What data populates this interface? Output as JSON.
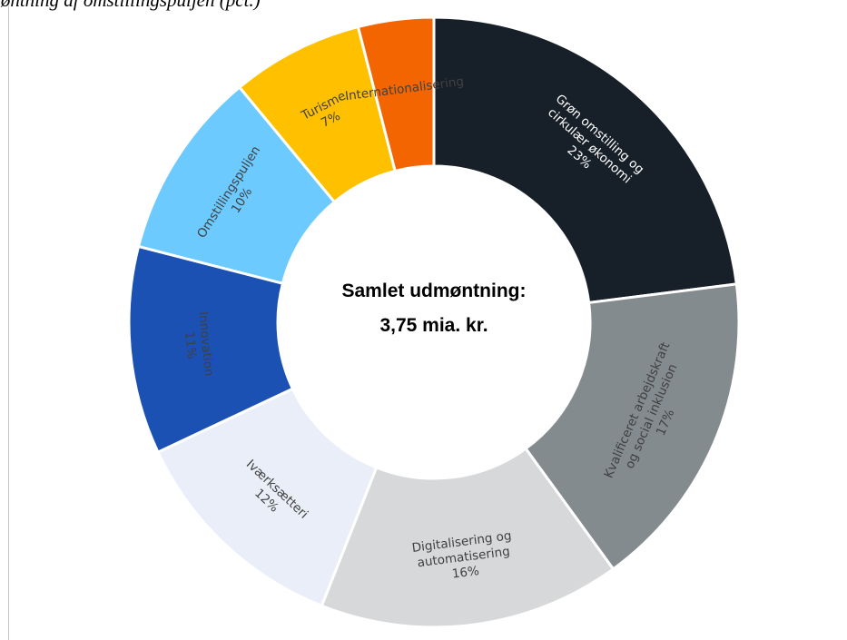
{
  "figure_title": "Udmøntning af omstillingspuljen (pct.)",
  "chart_data": {
    "type": "pie",
    "center_label": [
      "Samlet udmøntning:",
      "3,75 mia. kr."
    ],
    "slices": [
      {
        "label": [
          "Grøn omstilling og",
          "cirkulær økonomi"
        ],
        "value": 23,
        "pct_label": "23%",
        "color": "#172029",
        "text_color": "#ffffff"
      },
      {
        "label": [
          "Kvalificeret arbejdskraft",
          "og social inklusion"
        ],
        "value": 17,
        "pct_label": "17%",
        "color": "#848b8f",
        "text_color": "#404040"
      },
      {
        "label": [
          "Digitalisering og",
          "automatisering"
        ],
        "value": 16,
        "pct_label": "16%",
        "color": "#d7d8d9",
        "text_color": "#404040"
      },
      {
        "label": [
          "Iværksætteri"
        ],
        "value": 12,
        "pct_label": "12%",
        "color": "#eaeef8",
        "text_color": "#404040"
      },
      {
        "label": [
          "Innovation"
        ],
        "value": 11,
        "pct_label": "11%",
        "color": "#1b51b3",
        "text_color": "#404040"
      },
      {
        "label": [
          "Omstillingspuljen"
        ],
        "value": 10,
        "pct_label": "10%",
        "color": "#6ccaff",
        "text_color": "#404040"
      },
      {
        "label": [
          "Turisme"
        ],
        "value": 7,
        "pct_label": "7%",
        "color": "#ffc000",
        "text_color": "#404040"
      },
      {
        "label": [
          "Internationalisering"
        ],
        "value": 4,
        "pct_label": "",
        "color": "#f26500",
        "text_color": "#404040"
      }
    ]
  }
}
